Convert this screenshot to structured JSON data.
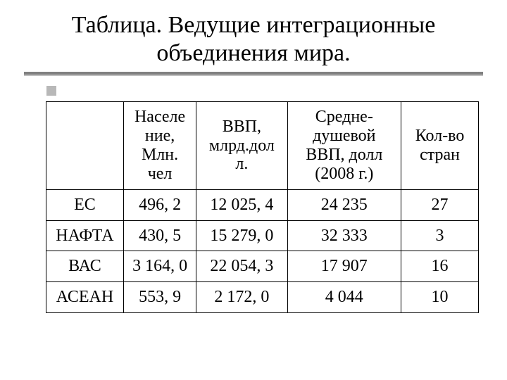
{
  "title_line1": "Таблица. Ведущие интеграционные",
  "title_line2": "объединения мира.",
  "table": {
    "type": "table",
    "background_color": "#ffffff",
    "border_color": "#000000",
    "font_family": "Times New Roman",
    "cell_fontsize": 24,
    "header_fontsize": 24,
    "text_color": "#000000",
    "column_widths_pct": [
      17,
      16,
      20,
      25,
      17
    ],
    "alignment": "center",
    "columns": [
      "",
      "Населе\nние,\nМлн.\nчел",
      "ВВП,\nмлрд.дол\nл.",
      "Средне-\nдушевой\nВВП, долл\n(2008 г.)",
      "Кол-во\nстран"
    ],
    "rows": [
      [
        "ЕС",
        "496, 2",
        "12 025, 4",
        "24 235",
        "27"
      ],
      [
        "НАФТА",
        "430, 5",
        "15 279, 0",
        "32 333",
        "3"
      ],
      [
        "ВАС",
        "3 164, 0",
        "22 054, 3",
        "17 907",
        "16"
      ],
      [
        "АСЕАН",
        "553, 9",
        "2 172, 0",
        "4 044",
        "10"
      ]
    ]
  },
  "bullet_color": "#b8b8b8",
  "underline_top_color": "#808080",
  "underline_bottom_color": "#c0c0c0"
}
